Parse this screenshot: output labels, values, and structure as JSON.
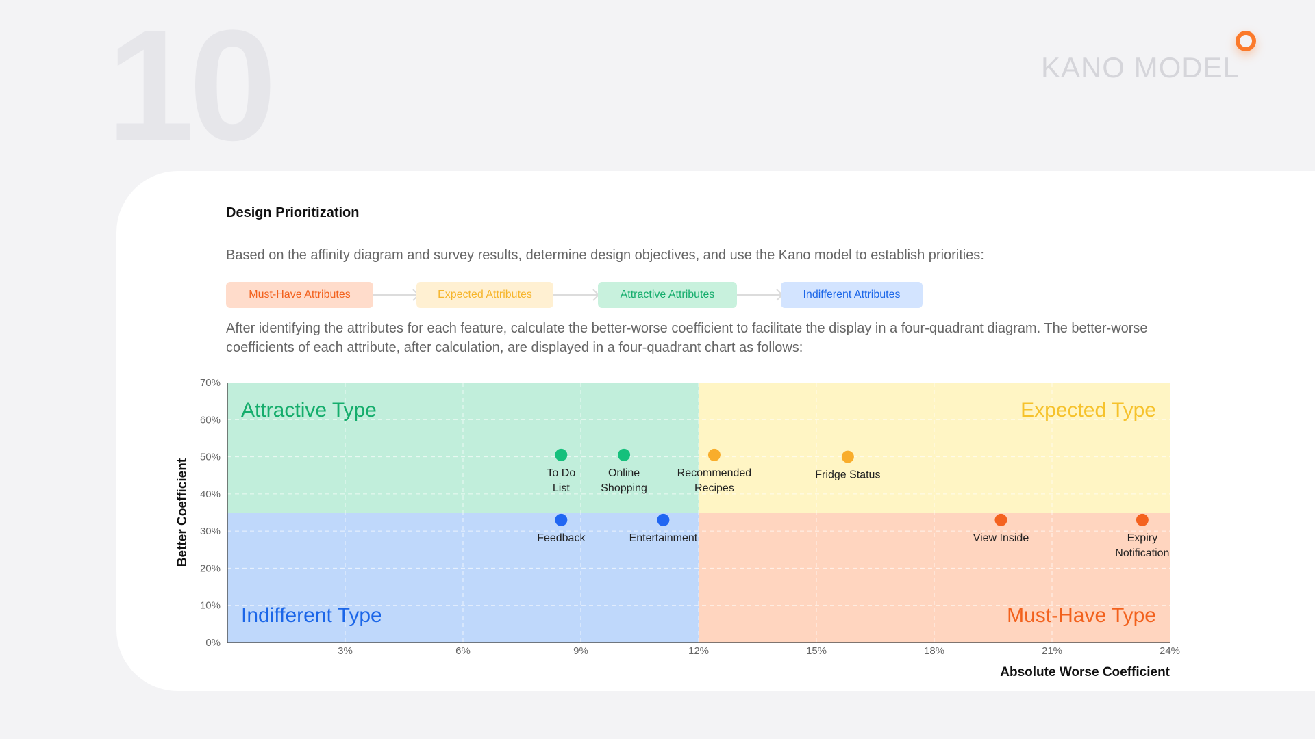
{
  "page": {
    "number": "10",
    "section_title": "KANO MODEL"
  },
  "content": {
    "heading": "Design Prioritization",
    "intro": "Based on the affinity diagram and survey results, determine design objectives, and use the Kano model to establish priorities:",
    "flow": [
      {
        "label": "Must-Have Attributes",
        "color": "#f2611d",
        "bg": "#ffdccb"
      },
      {
        "label": "Expected Attributes",
        "color": "#f6b52b",
        "bg": "#fff0d2"
      },
      {
        "label": "Attractive Attributes",
        "color": "#15ad6c",
        "bg": "#c8f1dd"
      },
      {
        "label": "Indifferent Attributes",
        "color": "#1b66e8",
        "bg": "#d3e4ff"
      }
    ],
    "explanation": "After identifying the attributes for each feature, calculate the better-worse coefficient to facilitate the display in a four-quadrant diagram. The better-worse coefficients of each attribute, after calculation, are displayed in a four-quadrant chart as follows:"
  },
  "chart_data": {
    "type": "scatter",
    "xlabel": "Absolute Worse Coefficient",
    "ylabel": "Better Coefficient",
    "xlim": [
      0,
      24
    ],
    "ylim": [
      0,
      70
    ],
    "x_ticks": [
      "3%",
      "6%",
      "9%",
      "12%",
      "15%",
      "18%",
      "21%",
      "24%"
    ],
    "y_ticks": [
      "0%",
      "10%",
      "20%",
      "30%",
      "40%",
      "50%",
      "60%",
      "70%"
    ],
    "x_divider": 12,
    "y_divider": 35,
    "grid": true,
    "quadrants": [
      {
        "label": "Attractive Type",
        "position": "top-left",
        "color": "#15ad6c",
        "bg": "#c1eedb"
      },
      {
        "label": "Expected Type",
        "position": "top-right",
        "color": "#f6c22c",
        "bg": "#fff5c4"
      },
      {
        "label": "Indifferent Type",
        "position": "bottom-left",
        "color": "#1b66e8",
        "bg": "#bfd8fb"
      },
      {
        "label": "Must-Have Type",
        "position": "bottom-right",
        "color": "#f2611d",
        "bg": "#ffd5bf"
      }
    ],
    "points": [
      {
        "label": "To Do List",
        "label_lines": [
          "To Do",
          "List"
        ],
        "x": 8.5,
        "y": 50.5,
        "color": "#15c07c"
      },
      {
        "label": "Online Shopping",
        "label_lines": [
          "Online",
          "Shopping"
        ],
        "x": 10.1,
        "y": 50.5,
        "color": "#15c07c"
      },
      {
        "label": "Recommended Recipes",
        "label_lines": [
          "Recommended",
          "Recipes"
        ],
        "x": 12.4,
        "y": 50.5,
        "color": "#f9ad2b"
      },
      {
        "label": "Fridge Status",
        "label_lines": [
          "Fridge Status"
        ],
        "x": 15.8,
        "y": 50.0,
        "color": "#f9ad2b"
      },
      {
        "label": "Feedback",
        "label_lines": [
          "Feedback"
        ],
        "x": 8.5,
        "y": 33.0,
        "color": "#2066f2"
      },
      {
        "label": "Entertainment",
        "label_lines": [
          "Entertainment"
        ],
        "x": 11.1,
        "y": 33.0,
        "color": "#2066f2"
      },
      {
        "label": "View Inside",
        "label_lines": [
          "View Inside"
        ],
        "x": 19.7,
        "y": 33.0,
        "color": "#f4621f"
      },
      {
        "label": "Expiry Notification",
        "label_lines": [
          "Expiry",
          "Notification"
        ],
        "x": 23.3,
        "y": 33.0,
        "color": "#f4621f"
      }
    ]
  }
}
